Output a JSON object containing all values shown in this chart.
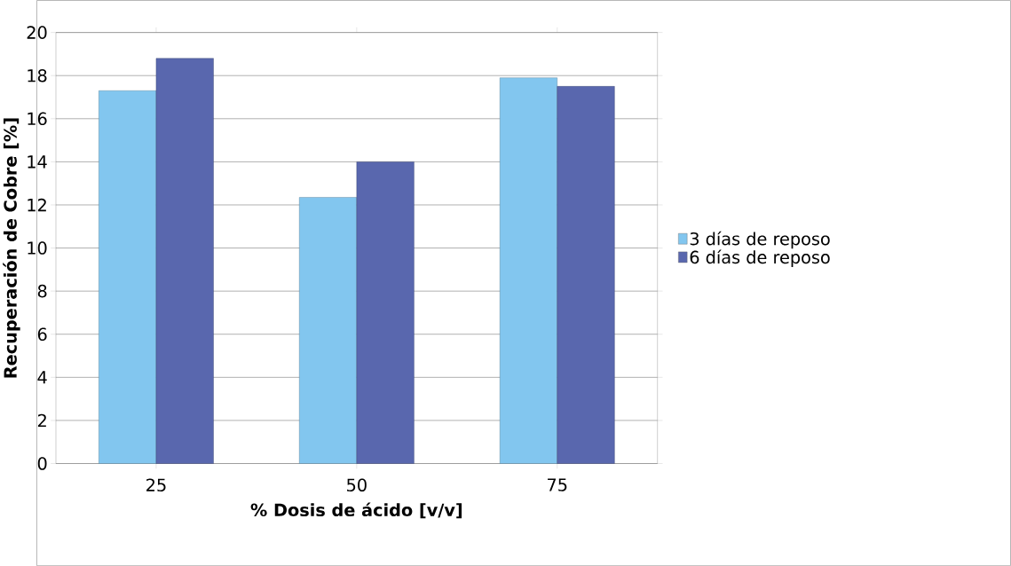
{
  "chart_data": {
    "type": "bar",
    "xlabel": "% Dosis de ácido [v/v]",
    "ylabel": "Recuperación de Cobre [%]",
    "categories": [
      "25",
      "50",
      "75"
    ],
    "series": [
      {
        "name": "3 días de reposo",
        "color": "#82c6ef",
        "values": [
          17.3,
          12.35,
          17.9
        ]
      },
      {
        "name": "6 días de reposo",
        "color": "#5967ae",
        "values": [
          18.8,
          14.0,
          17.5
        ]
      }
    ],
    "ylim": [
      0,
      20
    ],
    "yticks": [
      0,
      2,
      4,
      6,
      8,
      10,
      12,
      14,
      16,
      18,
      20
    ],
    "grid": "y",
    "legend": "right"
  }
}
